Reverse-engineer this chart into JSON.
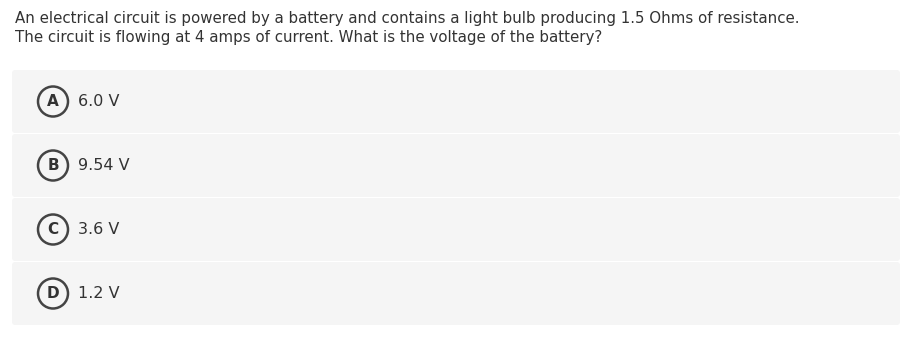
{
  "question_line1": "An electrical circuit is powered by a battery and contains a light bulb producing 1.5 Ohms of resistance.",
  "question_line2": "The circuit is flowing at 4 amps of current. What is the voltage of the battery?",
  "options": [
    {
      "label": "A",
      "text": "6.0 V"
    },
    {
      "label": "B",
      "text": "9.54 V"
    },
    {
      "label": "C",
      "text": "3.6 V"
    },
    {
      "label": "D",
      "text": "1.2 V"
    }
  ],
  "bg_color": "#ffffff",
  "option_bg_color": "#f5f5f5",
  "option_border_color": "#cccccc",
  "text_color": "#333333",
  "circle_color": "#444444",
  "question_fontsize": 10.8,
  "option_fontsize": 11.5,
  "label_fontsize": 11
}
